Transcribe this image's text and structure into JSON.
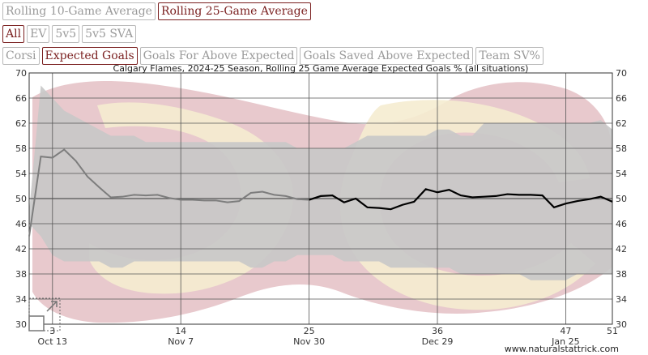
{
  "controls": {
    "row1": [
      {
        "label": "Rolling 10-Game Average",
        "active": false
      },
      {
        "label": "Rolling 25-Game Average",
        "active": true
      }
    ],
    "row2": [
      {
        "label": "All",
        "active": true
      },
      {
        "label": "EV",
        "active": false
      },
      {
        "label": "5v5",
        "active": false
      },
      {
        "label": "5v5 SVA",
        "active": false
      }
    ],
    "row3": [
      {
        "label": "Corsi",
        "active": false
      },
      {
        "label": "Expected Goals",
        "active": true
      },
      {
        "label": "Goals For Above Expected",
        "active": false
      },
      {
        "label": "Goals Saved Above Expected",
        "active": false
      },
      {
        "label": "Team SV%",
        "active": false
      }
    ]
  },
  "chart_data": {
    "type": "line",
    "title": "Calgary Flames, 2024-25 Season, Rolling 25 Game Average Expected Goals % (all situations)",
    "ylim": [
      30,
      70
    ],
    "yticks": [
      30,
      34,
      38,
      42,
      46,
      50,
      54,
      58,
      62,
      66,
      70
    ],
    "xlim": [
      1,
      51
    ],
    "game_ticks": [
      3,
      14,
      25,
      36,
      47,
      51
    ],
    "date_labels": [
      {
        "game": 3,
        "label": "Oct 13"
      },
      {
        "game": 14,
        "label": "Nov 7"
      },
      {
        "game": 25,
        "label": "Nov 30"
      },
      {
        "game": 36,
        "label": "Dec 29"
      },
      {
        "game": 47,
        "label": "Jan 25"
      }
    ],
    "partial_window_until_game": 25,
    "series": [
      {
        "x": [
          1,
          2,
          3,
          4,
          5,
          6,
          7,
          8,
          9,
          10,
          11,
          12,
          13,
          14,
          15,
          16,
          17,
          18,
          19,
          20,
          21,
          22,
          23,
          24,
          25,
          26,
          27,
          28,
          29,
          30,
          31,
          32,
          33,
          34,
          35,
          36,
          37,
          38,
          39,
          40,
          41,
          42,
          43,
          44,
          45,
          46,
          47,
          48,
          49,
          50,
          51
        ],
        "values": [
          44.0,
          56.7,
          56.5,
          57.8,
          56.0,
          53.5,
          51.8,
          50.2,
          50.3,
          50.6,
          50.5,
          50.6,
          50.1,
          49.8,
          49.8,
          49.7,
          49.7,
          49.4,
          49.6,
          50.9,
          51.1,
          50.6,
          50.4,
          49.9,
          49.8,
          50.4,
          50.5,
          49.4,
          50.0,
          48.6,
          48.5,
          48.3,
          49.0,
          49.5,
          51.5,
          51.0,
          51.4,
          50.5,
          50.2,
          50.3,
          50.4,
          50.7,
          50.6,
          50.6,
          50.5,
          48.6,
          49.2,
          49.6,
          49.9,
          50.3,
          49.5
        ]
      }
    ],
    "band_upper": [
      48,
      68,
      66,
      64,
      63,
      62,
      61,
      60,
      60,
      60,
      59,
      59,
      59,
      59,
      59,
      59,
      59,
      59,
      59,
      59,
      59,
      59,
      59,
      58,
      58,
      58,
      58,
      58,
      59,
      60,
      60,
      60,
      60,
      60,
      60,
      61,
      61,
      60,
      60,
      62,
      62,
      62,
      62,
      62,
      62,
      62,
      62,
      62,
      62,
      62.5,
      61
    ],
    "band_lower": [
      46,
      44,
      41,
      40,
      40,
      40,
      40,
      39,
      39,
      40,
      40,
      40,
      40,
      40,
      40,
      40,
      40,
      40,
      40,
      39,
      39,
      40,
      40,
      41,
      41,
      41,
      41,
      40,
      40,
      40,
      40,
      39,
      39,
      39,
      39,
      39,
      39,
      38,
      38,
      38,
      38,
      38,
      38,
      37,
      37,
      37,
      37,
      38,
      38,
      38,
      38
    ],
    "grid": true,
    "credit": "www.naturalstattrick.com",
    "colors": {
      "line_full": "#000000",
      "line_partial": "#7d7d7d",
      "band": "#c8c8c8",
      "logo_red": "#e4bfc4",
      "logo_yellow": "#f5ecd0"
    }
  }
}
